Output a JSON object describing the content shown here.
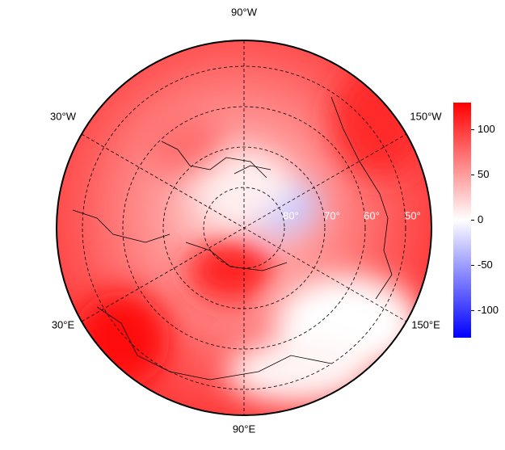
{
  "graticule": {
    "meridian_labels": [
      "90°W",
      "30°W",
      "150°W",
      "30°E",
      "150°E",
      "90°E"
    ],
    "parallel_labels": [
      "80°",
      "70°",
      "60°",
      "50°"
    ]
  },
  "colorbar": {
    "lim": [
      -130,
      130
    ],
    "ticks": [
      -100,
      -50,
      0,
      50,
      100
    ],
    "colors": [
      "#0000ff",
      "#ffffff",
      "#ff0000"
    ]
  }
}
